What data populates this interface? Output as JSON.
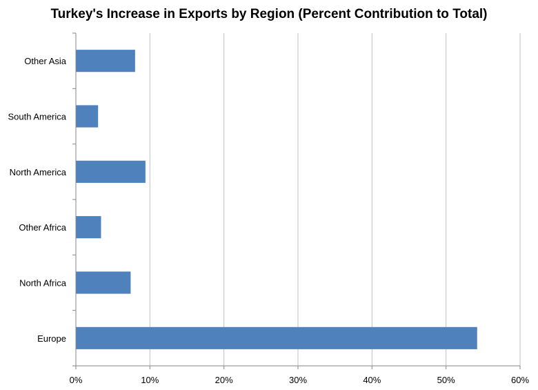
{
  "chart_data": {
    "type": "bar",
    "orientation": "horizontal",
    "title": "Turkey's Increase in Exports by Region (Percent Contribution to Total)",
    "categories": [
      "Europe",
      "North Africa",
      "Other Africa",
      "North America",
      "South America",
      "Other Asia"
    ],
    "values": [
      54.2,
      7.4,
      3.4,
      9.4,
      3.0,
      8.0
    ],
    "xlim": [
      0,
      60
    ],
    "xticks": [
      0,
      10,
      20,
      30,
      40,
      50,
      60
    ],
    "xtick_labels": [
      "0%",
      "10%",
      "20%",
      "30%",
      "40%",
      "50%",
      "60%"
    ],
    "xlabel": "",
    "ylabel": "",
    "grid": "vertical",
    "legend": "none",
    "bar_color": "#4F81BD"
  }
}
